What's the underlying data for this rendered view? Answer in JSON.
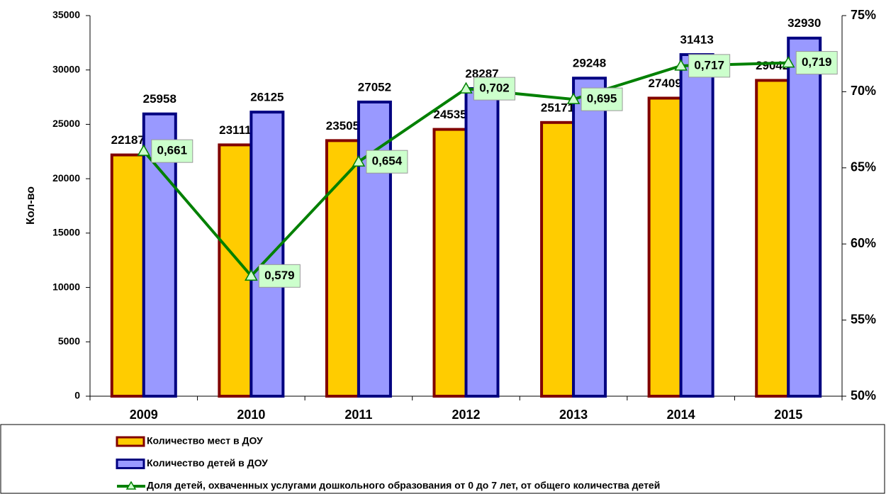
{
  "chart_data": {
    "type": "bar_line",
    "y_label": "Кол-во",
    "categories": [
      "2009",
      "2010",
      "2011",
      "2012",
      "2013",
      "2014",
      "2015"
    ],
    "series": [
      {
        "name": "Количество мест в ДОУ",
        "color": "#ffcc00",
        "edge": "#800000",
        "values": [
          22187,
          23111,
          23505,
          24535,
          25171,
          27409,
          29042
        ]
      },
      {
        "name": "Количество детей в ДОУ",
        "color": "#9999ff",
        "edge": "#000080",
        "values": [
          25958,
          26125,
          27052,
          28287,
          29248,
          31413,
          32930
        ]
      },
      {
        "name": "Доля детей, охваченных услугами дошкольного образования от 0 до 7 лет, от общего количества детей",
        "color": "#008000",
        "axis": "y2",
        "type": "line",
        "values": [
          0.661,
          0.579,
          0.654,
          0.702,
          0.695,
          0.717,
          0.719
        ],
        "value_labels": [
          "0,661",
          "0,579",
          "0,654",
          "0,702",
          "0,695",
          "0,717",
          "0,719"
        ]
      }
    ],
    "ylim": [
      0,
      35000
    ],
    "yticks": [
      0,
      5000,
      10000,
      15000,
      20000,
      25000,
      30000,
      35000
    ],
    "y2lim": [
      0.5,
      0.75
    ],
    "y2ticks": [
      {
        "value": 0.5,
        "label": "50%"
      },
      {
        "value": 0.55,
        "label": "55%"
      },
      {
        "value": 0.6,
        "label": "60%"
      },
      {
        "value": 0.65,
        "label": "65%"
      },
      {
        "value": 0.7,
        "label": "70%"
      },
      {
        "value": 0.75,
        "label": "75%"
      }
    ]
  }
}
